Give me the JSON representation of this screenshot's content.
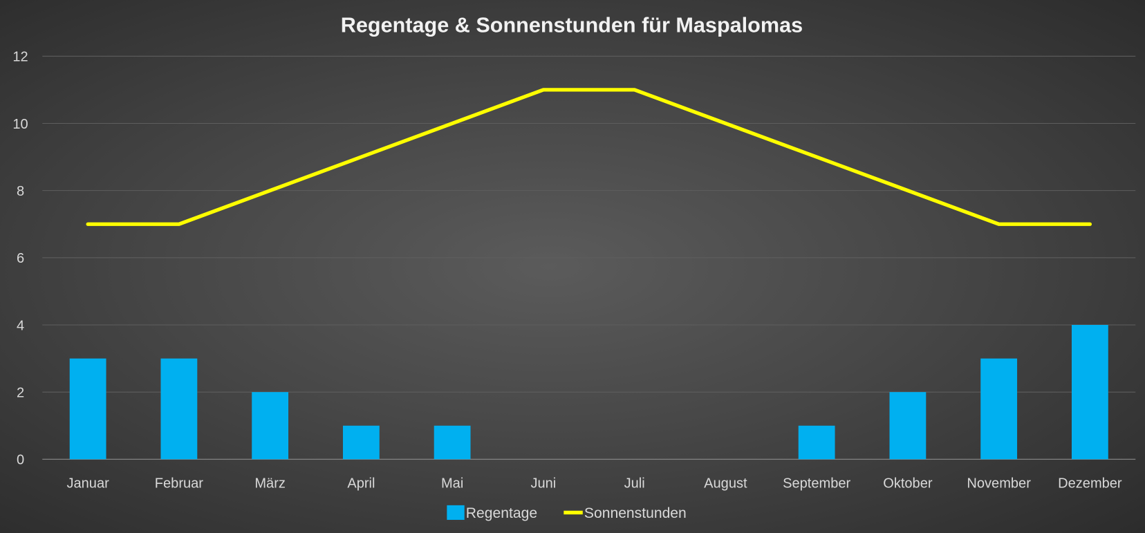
{
  "chart_data": {
    "type": "bar",
    "title": "Regentage & Sonnenstunden für Maspalomas",
    "xlabel": "",
    "ylabel": "",
    "ylim": [
      0,
      12
    ],
    "yticks": [
      0,
      2,
      4,
      6,
      8,
      10,
      12
    ],
    "grid": true,
    "legend_position": "bottom",
    "categories": [
      "Januar",
      "Februar",
      "März",
      "April",
      "Mai",
      "Juni",
      "Juli",
      "August",
      "September",
      "Oktober",
      "November",
      "Dezember"
    ],
    "series": [
      {
        "name": "Regentage",
        "type": "bar",
        "color": "#00b0f0",
        "values": [
          3,
          3,
          2,
          1,
          1,
          0,
          0,
          0,
          1,
          2,
          3,
          4
        ]
      },
      {
        "name": "Sonnenstunden",
        "type": "line",
        "color": "#ffff00",
        "values": [
          7,
          7,
          8,
          9,
          10,
          11,
          11,
          10,
          9,
          8,
          7,
          7
        ]
      }
    ]
  }
}
